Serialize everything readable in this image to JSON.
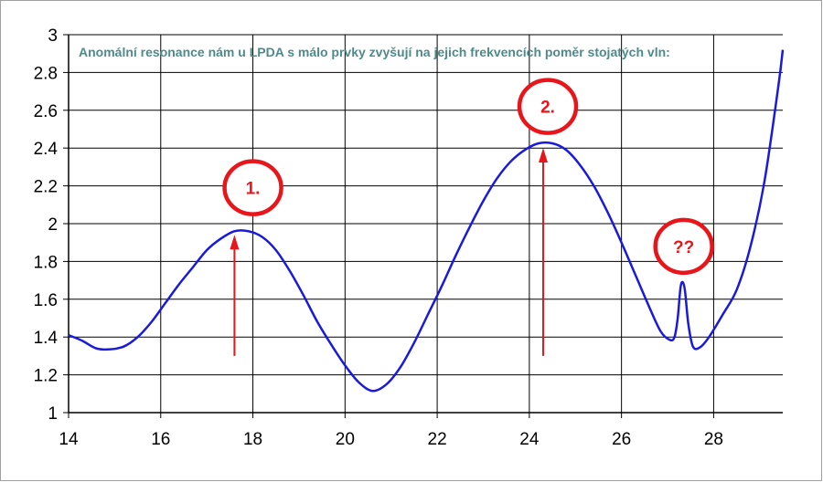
{
  "chart_data": {
    "type": "line",
    "title": "Anomální resonance nám u LPDA s málo prvky zvyšují na jejich frekvencích poměr stojatých vln:",
    "xlabel": "",
    "ylabel": "",
    "xlim": [
      14,
      29.5
    ],
    "ylim": [
      1,
      3
    ],
    "x_ticks": [
      14,
      16,
      18,
      20,
      22,
      24,
      26,
      28
    ],
    "x_tick_labels": [
      "14",
      "16",
      "18",
      "20",
      "22",
      "24",
      "26",
      "28"
    ],
    "y_ticks": [
      1,
      1.2,
      1.4,
      1.6,
      1.8,
      2,
      2.2,
      2.4,
      2.6,
      2.8,
      3
    ],
    "y_tick_labels": [
      "1",
      "1.2",
      "1.4",
      "1.6",
      "1.8",
      "2",
      "2.2",
      "2.4",
      "2.6",
      "2.8",
      "3"
    ],
    "grid": true,
    "series": [
      {
        "color": "#1a1adc",
        "points": [
          [
            14.0,
            1.41
          ],
          [
            14.3,
            1.38
          ],
          [
            14.6,
            1.34
          ],
          [
            14.9,
            1.335
          ],
          [
            15.2,
            1.35
          ],
          [
            15.5,
            1.4
          ],
          [
            15.8,
            1.48
          ],
          [
            16.1,
            1.58
          ],
          [
            16.4,
            1.68
          ],
          [
            16.7,
            1.77
          ],
          [
            17.0,
            1.86
          ],
          [
            17.3,
            1.92
          ],
          [
            17.6,
            1.96
          ],
          [
            17.9,
            1.96
          ],
          [
            18.2,
            1.93
          ],
          [
            18.5,
            1.86
          ],
          [
            18.8,
            1.75
          ],
          [
            19.1,
            1.62
          ],
          [
            19.4,
            1.48
          ],
          [
            19.7,
            1.36
          ],
          [
            20.0,
            1.25
          ],
          [
            20.3,
            1.16
          ],
          [
            20.6,
            1.115
          ],
          [
            20.9,
            1.15
          ],
          [
            21.2,
            1.24
          ],
          [
            21.5,
            1.37
          ],
          [
            21.8,
            1.52
          ],
          [
            22.1,
            1.67
          ],
          [
            22.4,
            1.83
          ],
          [
            22.7,
            1.98
          ],
          [
            23.0,
            2.12
          ],
          [
            23.3,
            2.24
          ],
          [
            23.6,
            2.33
          ],
          [
            23.9,
            2.39
          ],
          [
            24.2,
            2.425
          ],
          [
            24.5,
            2.425
          ],
          [
            24.8,
            2.39
          ],
          [
            25.1,
            2.31
          ],
          [
            25.4,
            2.2
          ],
          [
            25.7,
            2.06
          ],
          [
            26.0,
            1.9
          ],
          [
            26.3,
            1.73
          ],
          [
            26.6,
            1.56
          ],
          [
            26.85,
            1.43
          ],
          [
            27.05,
            1.385
          ],
          [
            27.15,
            1.4
          ],
          [
            27.22,
            1.5
          ],
          [
            27.28,
            1.66
          ],
          [
            27.33,
            1.69
          ],
          [
            27.38,
            1.64
          ],
          [
            27.45,
            1.47
          ],
          [
            27.55,
            1.35
          ],
          [
            27.7,
            1.345
          ],
          [
            27.9,
            1.4
          ],
          [
            28.2,
            1.52
          ],
          [
            28.5,
            1.65
          ],
          [
            28.8,
            1.88
          ],
          [
            29.1,
            2.22
          ],
          [
            29.4,
            2.72
          ],
          [
            29.5,
            2.92
          ]
        ]
      }
    ],
    "annotations": [
      {
        "label": "1.",
        "arrow_x": 17.6,
        "arrow_from_y": 1.3,
        "arrow_to_y": 1.96,
        "circle_x": 18.0,
        "circle_y": 2.19
      },
      {
        "label": "2.",
        "arrow_x": 24.3,
        "arrow_from_y": 1.3,
        "arrow_to_y": 2.42,
        "circle_x": 24.4,
        "circle_y": 2.62
      },
      {
        "label": "??",
        "circle_x": 27.35,
        "circle_y": 1.88
      }
    ],
    "colors": {
      "line": "#1a1adc",
      "annotation": "#e8161b",
      "title": "#4f8a8b",
      "grid": "#000000"
    }
  }
}
